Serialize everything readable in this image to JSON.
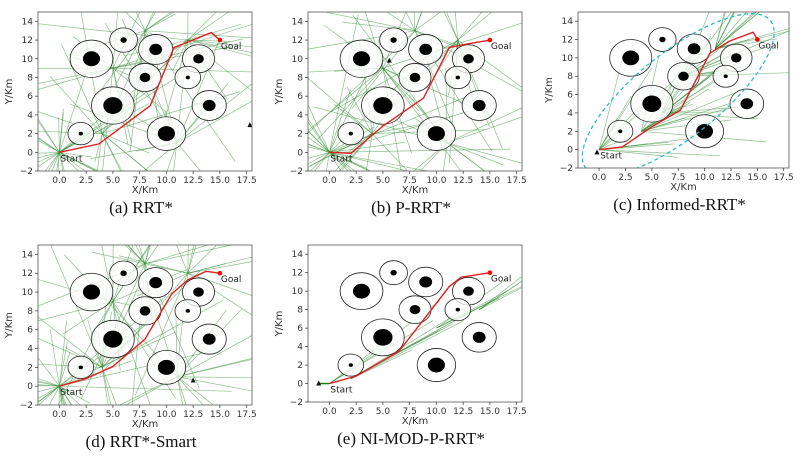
{
  "chart_data": [
    {
      "id": "a",
      "caption": "(a)  RRT*",
      "type": "line",
      "xlabel": "X/Km",
      "ylabel": "Y/Km",
      "xlim": [
        -2,
        18
      ],
      "ylim": [
        -2,
        15
      ],
      "path": [
        [
          0,
          0
        ],
        [
          3.7,
          0.9
        ],
        [
          8.5,
          5
        ],
        [
          10.7,
          11.2
        ],
        [
          14.2,
          12.8
        ],
        [
          15,
          12
        ]
      ],
      "markers": [
        [
          17.8,
          2.9
        ]
      ]
    },
    {
      "id": "b",
      "caption": "(b)  P-RRT*",
      "type": "line",
      "xlabel": "X/Km",
      "ylabel": "Y/Km",
      "xlim": [
        -2,
        18
      ],
      "ylim": [
        -2,
        15
      ],
      "path": [
        [
          0,
          0
        ],
        [
          2,
          -0.1
        ],
        [
          5,
          2.8
        ],
        [
          8.8,
          5.8
        ],
        [
          11.2,
          11.2
        ],
        [
          12.5,
          11.5
        ],
        [
          15,
          12
        ]
      ],
      "markers": [
        [
          5.6,
          9.8
        ]
      ]
    },
    {
      "id": "c",
      "caption": "(c)  Informed-RRT*",
      "type": "line",
      "xlabel": "X/Km",
      "ylabel": "Y/Km",
      "xlim": [
        -2,
        18
      ],
      "ylim": [
        -2,
        15
      ],
      "path": [
        [
          0,
          0
        ],
        [
          2.2,
          0.3
        ],
        [
          5,
          2.5
        ],
        [
          7.7,
          4.3
        ],
        [
          10.5,
          10.5
        ],
        [
          12.3,
          11.8
        ],
        [
          14.6,
          12.8
        ],
        [
          15,
          12
        ]
      ],
      "markers": [
        [
          -0.2,
          -0.3
        ]
      ],
      "ellipse": {
        "center": [
          7.5,
          6
        ],
        "semi_major": 11.2,
        "semi_minor": 4.6,
        "angle_deg": 38.7
      }
    },
    {
      "id": "d",
      "caption": "(d)  RRT*-Smart",
      "type": "line",
      "xlabel": "X/Km",
      "ylabel": "Y/Km",
      "xlim": [
        -2,
        18
      ],
      "ylim": [
        -2,
        15
      ],
      "path": [
        [
          0,
          0
        ],
        [
          2.5,
          0.8
        ],
        [
          5,
          2.1
        ],
        [
          8,
          5
        ],
        [
          10.5,
          9.8
        ],
        [
          12,
          11.3
        ],
        [
          13.7,
          12.2
        ],
        [
          15,
          12
        ]
      ],
      "markers": [
        [
          12.5,
          0.6
        ]
      ]
    },
    {
      "id": "e",
      "caption": "(e)  NI-MOD-P-RRT*",
      "type": "line",
      "xlabel": "X/Km",
      "ylabel": "Y/Km",
      "xlim": [
        -2,
        18
      ],
      "ylim": [
        -2,
        15
      ],
      "path": [
        [
          0,
          0
        ],
        [
          2.5,
          0.8
        ],
        [
          6.5,
          3.5
        ],
        [
          9.2,
          7.5
        ],
        [
          11.2,
          10.5
        ],
        [
          12.3,
          11.5
        ],
        [
          15,
          12
        ]
      ],
      "markers": [
        [
          -1,
          0
        ]
      ]
    }
  ],
  "obstacles": [
    {
      "center": [
        3,
        10
      ],
      "outer_r": 2.0,
      "inner_r": 0.8
    },
    {
      "center": [
        6,
        12
      ],
      "outer_r": 1.3,
      "inner_r": 0.3
    },
    {
      "center": [
        9,
        11
      ],
      "outer_r": 1.6,
      "inner_r": 0.6
    },
    {
      "center": [
        13,
        10
      ],
      "outer_r": 1.5,
      "inner_r": 0.5
    },
    {
      "center": [
        8,
        8
      ],
      "outer_r": 1.5,
      "inner_r": 0.5
    },
    {
      "center": [
        12,
        8
      ],
      "outer_r": 1.2,
      "inner_r": 0.2
    },
    {
      "center": [
        5,
        5
      ],
      "outer_r": 2.0,
      "inner_r": 0.9
    },
    {
      "center": [
        14,
        5
      ],
      "outer_r": 1.6,
      "inner_r": 0.6
    },
    {
      "center": [
        2,
        2
      ],
      "outer_r": 1.2,
      "inner_r": 0.2
    },
    {
      "center": [
        10,
        2
      ],
      "outer_r": 1.8,
      "inner_r": 0.8
    }
  ],
  "start": {
    "point": [
      0,
      0
    ],
    "label": "Start"
  },
  "goal": {
    "point": [
      15,
      12
    ],
    "label": "Goal"
  },
  "xticks": [
    "0.0",
    "2.5",
    "5.0",
    "7.5",
    "10.0",
    "12.5",
    "15.0",
    "17.5"
  ],
  "yticks": [
    "-2",
    "0",
    "2",
    "4",
    "6",
    "8",
    "10",
    "12",
    "14"
  ],
  "colors": {
    "path": "#e02020",
    "tree": "#2e8b2e",
    "obstacle": "#000000",
    "ellipse": "#2bbcc8",
    "goal": "#ff0000"
  }
}
